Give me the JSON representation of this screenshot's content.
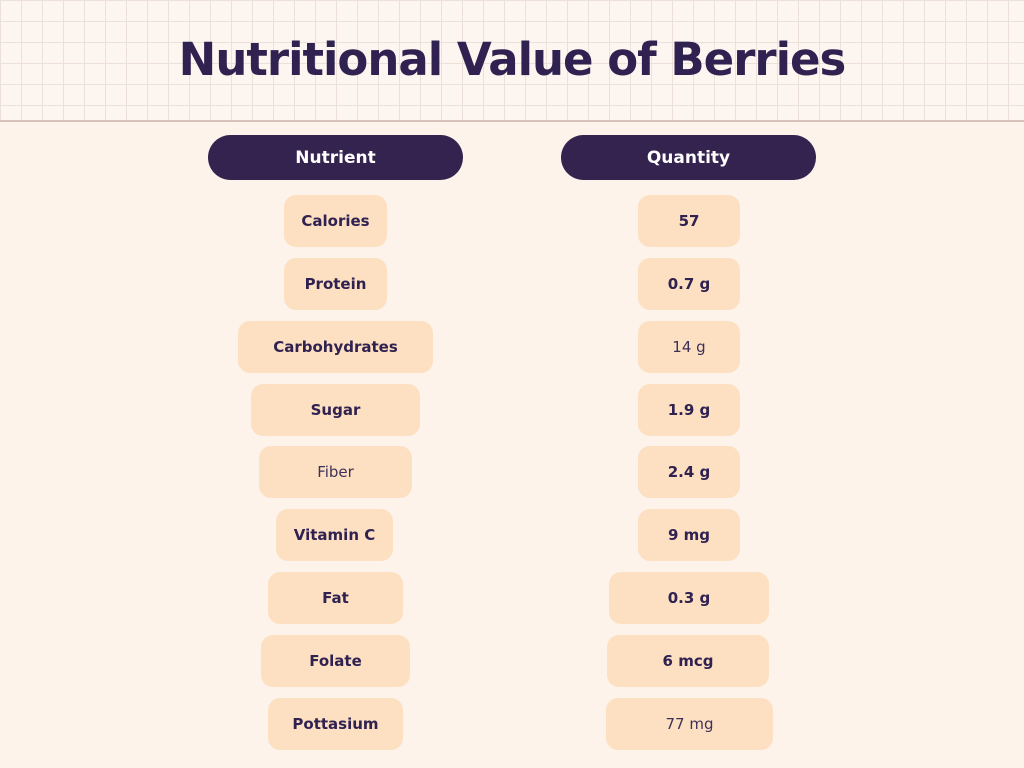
{
  "title": "Nutritional Value of Berries",
  "columns": {
    "nutrient": "Nutrient",
    "quantity": "Quantity"
  },
  "rows": [
    {
      "nutrient": "Calories",
      "quantity": "57"
    },
    {
      "nutrient": "Protein",
      "quantity": "0.7 g"
    },
    {
      "nutrient": "Carbohydrates",
      "quantity": "14 g"
    },
    {
      "nutrient": "Sugar",
      "quantity": "1.9 g"
    },
    {
      "nutrient": "Fiber",
      "quantity": "2.4 g"
    },
    {
      "nutrient": "Vitamin C",
      "quantity": "9 mg"
    },
    {
      "nutrient": "Fat",
      "quantity": "0.3 g"
    },
    {
      "nutrient": "Folate",
      "quantity": "6 mcg"
    },
    {
      "nutrient": "Pottasium",
      "quantity": "77 mg"
    }
  ],
  "colors": {
    "background": "#fdf3ea",
    "header_pill": "#34224f",
    "cell_pill": "#fde0c2",
    "text": "#2f2150"
  }
}
